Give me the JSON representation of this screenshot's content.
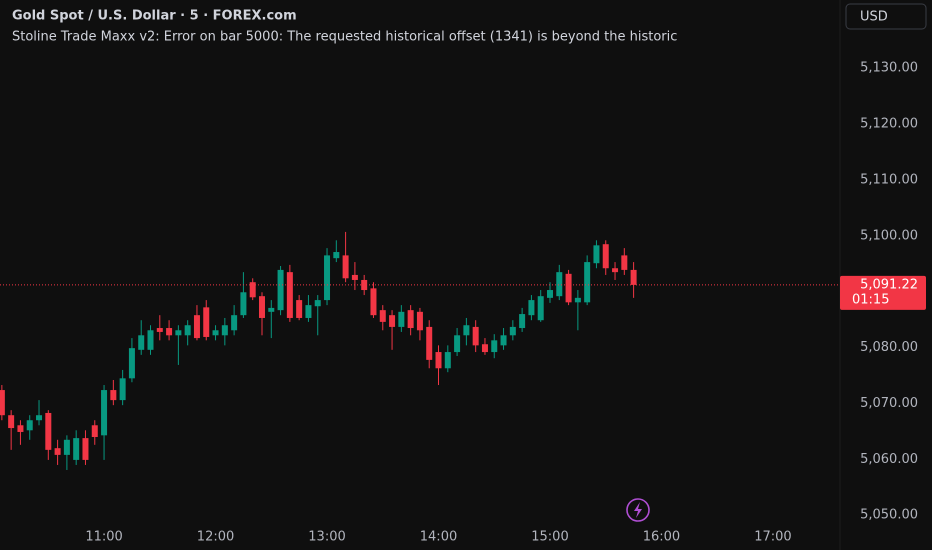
{
  "chart_data": {
    "type": "candlestick",
    "title": "Gold Spot / U.S. Dollar · 5 · FOREX.com",
    "subtitle": "Stoline Trade Maxx v2: Error on bar 5000: The requested historical offset (1341) is beyond the historic",
    "currency": "USD",
    "up_color": "#089981",
    "down_color": "#f23645",
    "x": [
      "10:05",
      "10:10",
      "10:15",
      "10:20",
      "10:25",
      "10:30",
      "10:35",
      "10:40",
      "10:45",
      "10:50",
      "10:55",
      "11:00",
      "11:05",
      "11:10",
      "11:15",
      "11:20",
      "11:25",
      "11:30",
      "11:35",
      "11:40",
      "11:45",
      "11:50",
      "11:55",
      "12:00",
      "12:05",
      "12:10",
      "12:15",
      "12:20",
      "12:25",
      "12:30",
      "12:35",
      "12:40",
      "12:45",
      "12:50",
      "12:55",
      "13:00",
      "13:05",
      "13:10",
      "13:15",
      "13:20",
      "13:25",
      "13:30",
      "13:35",
      "13:40",
      "13:45",
      "13:50",
      "13:55",
      "14:00",
      "14:05",
      "14:10",
      "14:15",
      "14:20",
      "14:25",
      "14:30",
      "14:35",
      "14:40",
      "14:45",
      "14:50",
      "14:55",
      "15:00",
      "15:05",
      "15:10",
      "15:15",
      "15:20",
      "15:25",
      "15:30",
      "15:35",
      "15:40",
      "15:45"
    ],
    "open": [
      5072.4,
      5067.9,
      5066.1,
      5065.2,
      5067.0,
      5068.3,
      5062.0,
      5060.8,
      5059.9,
      5063.8,
      5066.1,
      5064.3,
      5072.4,
      5070.6,
      5074.5,
      5079.6,
      5079.6,
      5083.5,
      5083.5,
      5082.2,
      5082.2,
      5085.8,
      5087.2,
      5082.2,
      5082.2,
      5083.1,
      5085.8,
      5091.7,
      5089.2,
      5086.4,
      5086.7,
      5093.5,
      5088.5,
      5085.3,
      5087.4,
      5088.5,
      5096.0,
      5096.5,
      5093.0,
      5092.1,
      5090.6,
      5086.7,
      5085.8,
      5083.7,
      5086.7,
      5086.4,
      5083.7,
      5079.2,
      5076.3,
      5079.2,
      5082.2,
      5083.7,
      5080.6,
      5079.2,
      5080.4,
      5082.2,
      5083.5,
      5085.8,
      5084.9,
      5088.9,
      5089.2,
      5093.2,
      5088.1,
      5088.1,
      5095.1,
      5098.5,
      5094.2,
      5096.5,
      5093.9
    ],
    "high": [
      5073.3,
      5068.8,
      5067.0,
      5067.9,
      5070.6,
      5068.8,
      5063.5,
      5064.3,
      5065.2,
      5065.2,
      5067.0,
      5073.3,
      5074.2,
      5076.0,
      5081.7,
      5084.9,
      5084.0,
      5085.8,
      5084.9,
      5084.0,
      5084.9,
      5087.6,
      5088.5,
      5084.0,
      5085.3,
      5087.6,
      5093.5,
      5092.4,
      5089.9,
      5088.5,
      5094.6,
      5094.8,
      5089.4,
      5089.4,
      5089.4,
      5097.8,
      5099.2,
      5100.7,
      5095.3,
      5093.0,
      5091.7,
      5087.6,
      5086.7,
      5087.6,
      5087.6,
      5087.1,
      5084.9,
      5080.4,
      5080.4,
      5083.5,
      5085.3,
      5084.9,
      5081.7,
      5082.4,
      5083.5,
      5084.9,
      5087.1,
      5089.4,
      5090.3,
      5091.7,
      5094.8,
      5093.9,
      5090.3,
      5096.5,
      5099.2,
      5099.2,
      5095.3,
      5097.8,
      5095.3
    ],
    "low": [
      5067.0,
      5061.7,
      5062.6,
      5063.5,
      5066.1,
      5059.9,
      5059.0,
      5058.1,
      5059.0,
      5059.0,
      5062.6,
      5059.9,
      5069.7,
      5069.7,
      5073.8,
      5078.7,
      5078.7,
      5081.3,
      5081.3,
      5076.9,
      5080.4,
      5081.3,
      5081.3,
      5081.3,
      5080.4,
      5082.2,
      5085.3,
      5088.5,
      5082.2,
      5081.7,
      5085.8,
      5084.6,
      5084.9,
      5084.6,
      5082.2,
      5087.6,
      5095.3,
      5091.7,
      5090.3,
      5089.4,
      5085.3,
      5083.1,
      5079.6,
      5082.8,
      5082.2,
      5081.3,
      5076.3,
      5073.3,
      5075.6,
      5078.5,
      5080.4,
      5079.2,
      5078.7,
      5078.1,
      5079.6,
      5081.3,
      5082.8,
      5084.9,
      5084.6,
      5088.0,
      5088.5,
      5087.6,
      5083.1,
      5087.6,
      5094.2,
      5093.0,
      5092.1,
      5093.0,
      5088.9
    ],
    "close": [
      5067.9,
      5065.6,
      5064.9,
      5067.0,
      5067.9,
      5061.7,
      5060.8,
      5063.5,
      5063.8,
      5059.9,
      5064.0,
      5072.4,
      5070.6,
      5074.5,
      5079.9,
      5082.2,
      5083.1,
      5082.8,
      5082.2,
      5083.1,
      5084.0,
      5081.7,
      5081.9,
      5083.1,
      5084.0,
      5085.8,
      5089.9,
      5089.0,
      5085.3,
      5087.1,
      5093.9,
      5085.3,
      5085.3,
      5087.6,
      5088.5,
      5096.5,
      5097.1,
      5092.4,
      5092.1,
      5090.3,
      5085.8,
      5084.6,
      5083.7,
      5086.4,
      5083.5,
      5083.1,
      5077.8,
      5076.3,
      5079.2,
      5082.2,
      5084.0,
      5080.4,
      5079.2,
      5081.3,
      5082.2,
      5083.7,
      5086.0,
      5088.5,
      5089.2,
      5090.3,
      5093.5,
      5088.1,
      5088.9,
      5095.3,
      5098.3,
      5094.2,
      5093.5,
      5093.9,
      5091.22
    ],
    "xlim": [
      "10:04",
      "17:35"
    ],
    "xticks": [
      "11:00",
      "12:00",
      "13:00",
      "14:00",
      "15:00",
      "16:00",
      "17:00"
    ],
    "ylim": [
      5047.0,
      5142.2
    ],
    "yticks": [
      {
        "value": 5050,
        "label": "5,050.00"
      },
      {
        "value": 5060,
        "label": "5,060.00"
      },
      {
        "value": 5070,
        "label": "5,070.00"
      },
      {
        "value": 5080,
        "label": "5,080.00"
      },
      {
        "value": 5090,
        "label": "5,090.00"
      },
      {
        "value": 5100,
        "label": "5,100.00"
      },
      {
        "value": 5110,
        "label": "5,110.00"
      },
      {
        "value": 5120,
        "label": "5,120.00"
      },
      {
        "value": 5130,
        "label": "5,130.00"
      }
    ],
    "last_price": {
      "value": 5091.22,
      "label": "5,091.22"
    },
    "countdown": "01:15"
  }
}
